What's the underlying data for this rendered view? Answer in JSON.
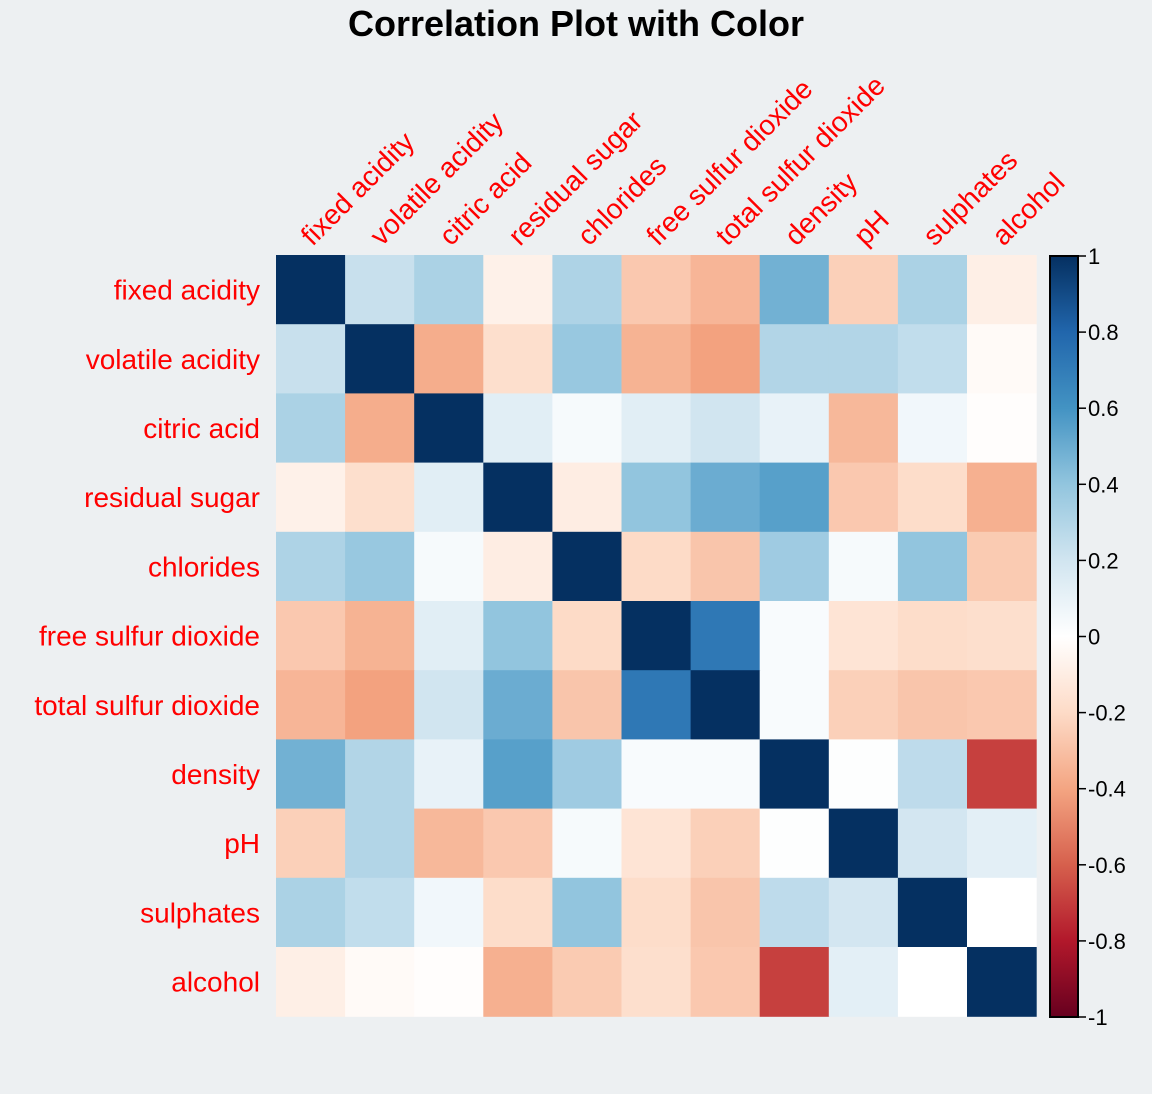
{
  "chart_data": {
    "type": "heatmap",
    "title": "Correlation Plot with Color",
    "labels": [
      "fixed acidity",
      "volatile acidity",
      "citric acid",
      "residual sugar",
      "chlorides",
      "free sulfur dioxide",
      "total sulfur dioxide",
      "density",
      "pH",
      "sulphates",
      "alcohol"
    ],
    "matrix": [
      [
        1.0,
        0.23,
        0.32,
        -0.08,
        0.31,
        -0.27,
        -0.34,
        0.48,
        -0.24,
        0.32,
        -0.09
      ],
      [
        0.23,
        1.0,
        -0.37,
        -0.18,
        0.38,
        -0.35,
        -0.41,
        0.3,
        0.3,
        0.25,
        -0.03
      ],
      [
        0.32,
        -0.37,
        1.0,
        0.13,
        0.04,
        0.13,
        0.2,
        0.1,
        -0.33,
        0.06,
        -0.01
      ],
      [
        -0.08,
        -0.18,
        0.13,
        1.0,
        -0.1,
        0.4,
        0.5,
        0.55,
        -0.27,
        -0.19,
        -0.36
      ],
      [
        0.31,
        0.38,
        0.04,
        -0.1,
        1.0,
        -0.2,
        -0.28,
        0.36,
        0.04,
        0.4,
        -0.26
      ],
      [
        -0.27,
        -0.35,
        0.13,
        0.4,
        -0.2,
        1.0,
        0.72,
        0.03,
        -0.15,
        -0.19,
        -0.18
      ],
      [
        -0.34,
        -0.41,
        0.2,
        0.5,
        -0.28,
        0.72,
        1.0,
        0.03,
        -0.24,
        -0.28,
        -0.27
      ],
      [
        0.48,
        0.3,
        0.1,
        0.55,
        0.36,
        0.03,
        0.03,
        1.0,
        0.01,
        0.26,
        -0.69
      ],
      [
        -0.24,
        0.3,
        -0.33,
        -0.27,
        0.04,
        -0.15,
        -0.24,
        0.01,
        1.0,
        0.19,
        0.12
      ],
      [
        0.32,
        0.25,
        0.06,
        -0.19,
        0.4,
        -0.19,
        -0.28,
        0.26,
        0.19,
        1.0,
        -0.0
      ],
      [
        -0.09,
        -0.03,
        -0.01,
        -0.36,
        -0.26,
        -0.18,
        -0.27,
        -0.69,
        0.12,
        -0.0,
        1.0
      ]
    ],
    "color_scale": {
      "domain": [
        -1,
        1
      ],
      "ticks": [
        "1",
        "0.8",
        "0.6",
        "0.4",
        "0.2",
        "0",
        "-0.2",
        "-0.4",
        "-0.6",
        "-0.8",
        "-1"
      ],
      "tick_values": [
        1,
        0.8,
        0.6,
        0.4,
        0.2,
        0,
        -0.2,
        -0.4,
        -0.6,
        -0.8,
        -1
      ],
      "stops": [
        "#67001f",
        "#b2182b",
        "#d6604d",
        "#f4a582",
        "#fddbc7",
        "#ffffff",
        "#d1e5f0",
        "#92c5de",
        "#4393c3",
        "#2166ac",
        "#053061"
      ]
    },
    "colors": {
      "label_color": "#ff0000",
      "title_color": "#000000",
      "background": "#edf0f2"
    }
  }
}
